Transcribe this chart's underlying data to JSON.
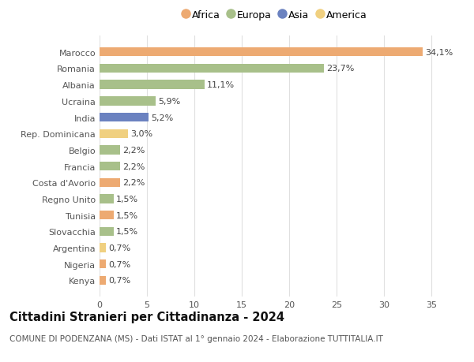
{
  "countries": [
    "Marocco",
    "Romania",
    "Albania",
    "Ucraina",
    "India",
    "Rep. Dominicana",
    "Belgio",
    "Francia",
    "Costa d'Avorio",
    "Regno Unito",
    "Tunisia",
    "Slovacchia",
    "Argentina",
    "Nigeria",
    "Kenya"
  ],
  "values": [
    34.1,
    23.7,
    11.1,
    5.9,
    5.2,
    3.0,
    2.2,
    2.2,
    2.2,
    1.5,
    1.5,
    1.5,
    0.7,
    0.7,
    0.7
  ],
  "labels": [
    "34,1%",
    "23,7%",
    "11,1%",
    "5,9%",
    "5,2%",
    "3,0%",
    "2,2%",
    "2,2%",
    "2,2%",
    "1,5%",
    "1,5%",
    "1,5%",
    "0,7%",
    "0,7%",
    "0,7%"
  ],
  "continents": [
    "Africa",
    "Europa",
    "Europa",
    "Europa",
    "Asia",
    "America",
    "Europa",
    "Europa",
    "Africa",
    "Europa",
    "Africa",
    "Europa",
    "America",
    "Africa",
    "Africa"
  ],
  "continent_colors": {
    "Africa": "#EDAA72",
    "Europa": "#A8C08A",
    "Asia": "#6B82C0",
    "America": "#F0D080"
  },
  "legend_order": [
    "Africa",
    "Europa",
    "Asia",
    "America"
  ],
  "title": "Cittadini Stranieri per Cittadinanza - 2024",
  "subtitle": "COMUNE DI PODENZANA (MS) - Dati ISTAT al 1° gennaio 2024 - Elaborazione TUTTITALIA.IT",
  "xlim": [
    0,
    37
  ],
  "xticks": [
    0,
    5,
    10,
    15,
    20,
    25,
    30,
    35
  ],
  "background_color": "#ffffff",
  "plot_bg_color": "#ffffff",
  "bar_height": 0.55,
  "grid_color": "#e0e0e0",
  "label_fontsize": 8,
  "tick_fontsize": 8,
  "title_fontsize": 10.5,
  "subtitle_fontsize": 7.5,
  "legend_fontsize": 9
}
